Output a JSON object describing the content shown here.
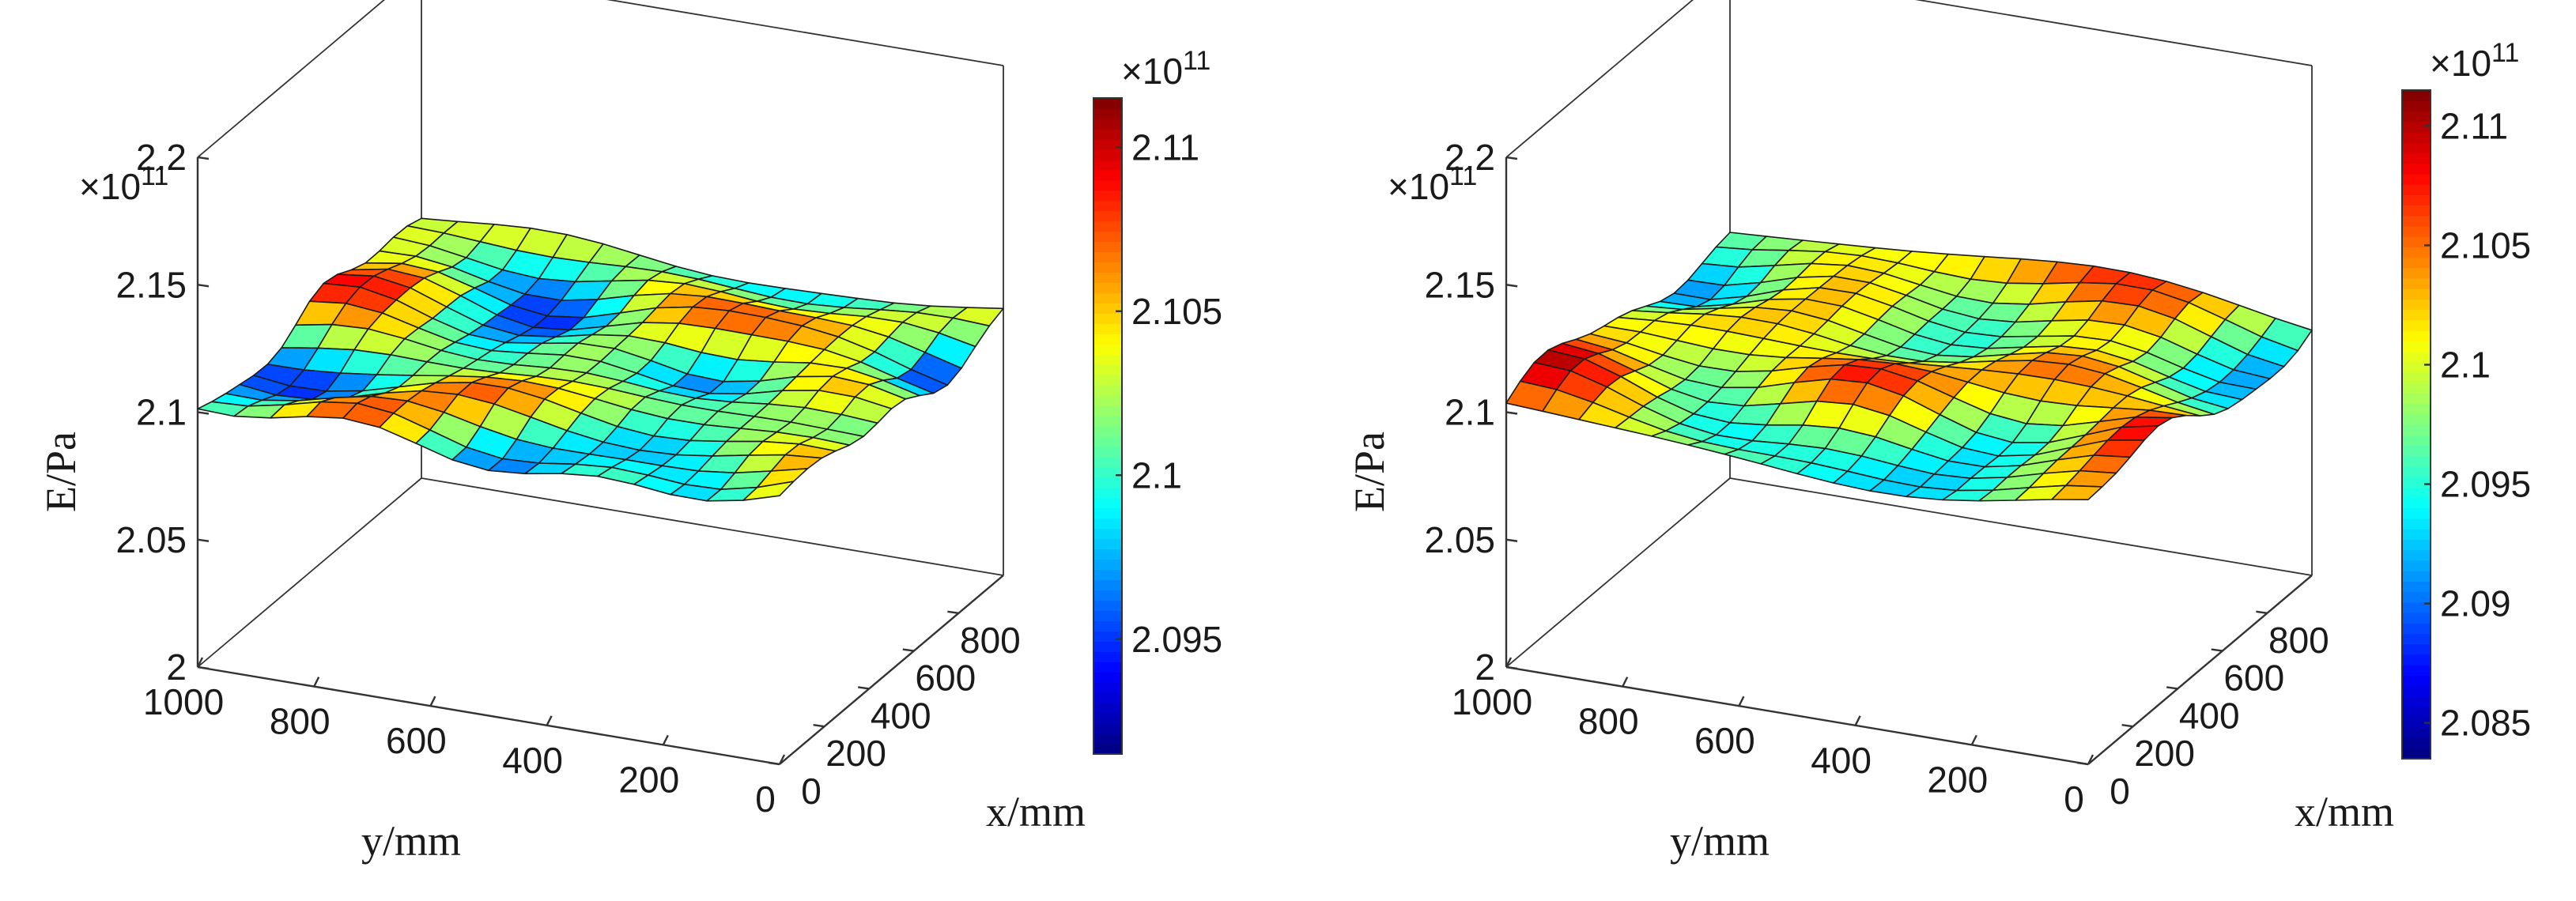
{
  "chart_data": [
    {
      "type": "surface",
      "zlabel": "E/Pa",
      "xlabel": "x/mm",
      "ylabel": "y/mm",
      "z_exponent": "×10",
      "z_exponent_power": "11",
      "zlim": [
        2.0,
        2.2
      ],
      "z_ticks": [
        2,
        2.05,
        2.1,
        2.15,
        2.2
      ],
      "z_tick_labels": [
        "2",
        "2.05",
        "2.1",
        "2.15",
        "2.2"
      ],
      "xlim": [
        0,
        1000
      ],
      "x_ticks": [
        0,
        200,
        400,
        600,
        800
      ],
      "x_tick_labels": [
        "0",
        "200",
        "400",
        "600",
        "800"
      ],
      "ylim": [
        0,
        1000
      ],
      "y_ticks": [
        0,
        200,
        400,
        600,
        800,
        1000
      ],
      "y_tick_labels": [
        "0",
        "200",
        "400",
        "600",
        "800",
        "1000"
      ],
      "colormap": "jet",
      "clim": [
        2.0915,
        2.1115
      ],
      "colorbar_ticks": [
        2.095,
        2.1,
        2.105,
        2.11
      ],
      "colorbar_tick_labels": [
        "2.095",
        "2.1",
        "2.105",
        "2.11"
      ],
      "colorbar_exponent": "×10",
      "colorbar_exponent_power": "11",
      "grid_n": 16,
      "surface_mean": 2.1015,
      "surface_modes": [
        {
          "amp": 0.0045,
          "fx": 1.0,
          "fy": 1.5,
          "px": 0.3,
          "py": 0.2
        },
        {
          "amp": 0.0035,
          "fx": 2.0,
          "fy": 1.0,
          "px": 1.1,
          "py": 0.7
        },
        {
          "amp": 0.003,
          "fx": 0.7,
          "fy": 2.5,
          "px": 2.0,
          "py": 1.3
        },
        {
          "amp": 0.002,
          "fx": 3.0,
          "fy": 2.0,
          "px": 0.5,
          "py": 2.2
        }
      ]
    },
    {
      "type": "surface",
      "zlabel": "E/Pa",
      "xlabel": "x/mm",
      "ylabel": "y/mm",
      "z_exponent": "×10",
      "z_exponent_power": "11",
      "zlim": [
        2.0,
        2.2
      ],
      "z_ticks": [
        2,
        2.05,
        2.1,
        2.15,
        2.2
      ],
      "z_tick_labels": [
        "2",
        "2.05",
        "2.1",
        "2.15",
        "2.2"
      ],
      "xlim": [
        0,
        1000
      ],
      "x_ticks": [
        0,
        200,
        400,
        600,
        800
      ],
      "x_tick_labels": [
        "0",
        "200",
        "400",
        "600",
        "800"
      ],
      "ylim": [
        0,
        1000
      ],
      "y_ticks": [
        0,
        200,
        400,
        600,
        800,
        1000
      ],
      "y_tick_labels": [
        "0",
        "200",
        "400",
        "600",
        "800",
        "1000"
      ],
      "colormap": "jet",
      "clim": [
        2.0835,
        2.1115
      ],
      "colorbar_ticks": [
        2.085,
        2.09,
        2.095,
        2.1,
        2.105,
        2.11
      ],
      "colorbar_tick_labels": [
        "2.085",
        "2.09",
        "2.095",
        "2.1",
        "2.105",
        "2.11"
      ],
      "colorbar_exponent": "×10",
      "colorbar_exponent_power": "11",
      "grid_n": 16,
      "surface_mean": 2.1,
      "surface_modes": [
        {
          "amp": 0.006,
          "fx": 1.0,
          "fy": 2.0,
          "px": 0.0,
          "py": 0.0
        },
        {
          "amp": 0.004,
          "fx": 0.5,
          "fy": 1.0,
          "px": 1.6,
          "py": 0.4
        },
        {
          "amp": 0.004,
          "fx": 1.5,
          "fy": 0.5,
          "px": 0.8,
          "py": 1.9
        },
        {
          "amp": 0.0025,
          "fx": 2.5,
          "fy": 1.5,
          "px": 2.4,
          "py": 0.9
        }
      ]
    }
  ]
}
